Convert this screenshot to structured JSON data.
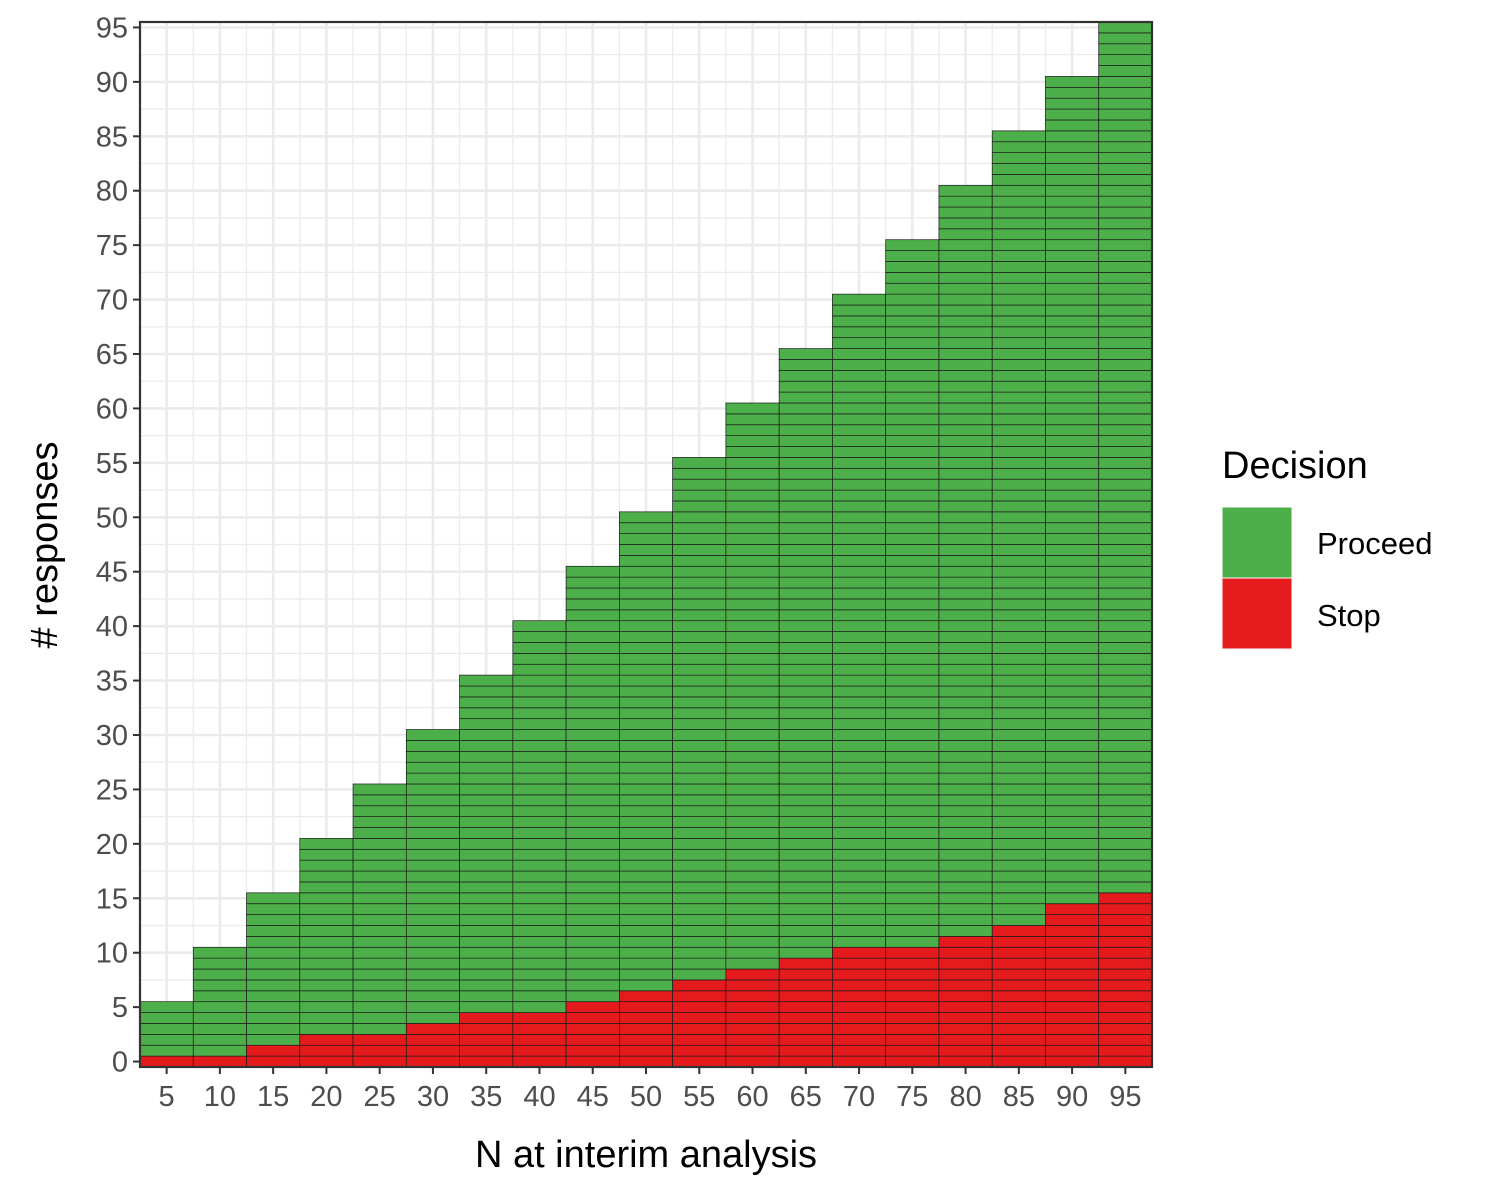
{
  "chart_data": {
    "type": "heatmap",
    "xlabel": "N at interim analysis",
    "ylabel": "# responses",
    "x_ticks": [
      5,
      10,
      15,
      20,
      25,
      30,
      35,
      40,
      45,
      50,
      55,
      60,
      65,
      70,
      75,
      80,
      85,
      90,
      95
    ],
    "y_ticks": [
      0,
      5,
      10,
      15,
      20,
      25,
      30,
      35,
      40,
      45,
      50,
      55,
      60,
      65,
      70,
      75,
      80,
      85,
      90,
      95
    ],
    "xlim": [
      2.5,
      97.5
    ],
    "ylim": [
      -0.5,
      95.5
    ],
    "grid": true,
    "legend": {
      "title": "Decision",
      "position": "right",
      "entries": [
        {
          "label": "Proceed",
          "color": "#4DAF4A"
        },
        {
          "label": "Stop",
          "color": "#E41A1C"
        }
      ]
    },
    "description": "For each interim N, tiles for responses 0..N; responses <= stop_max are Stop, above are Proceed",
    "series": [
      {
        "n": 5,
        "max_responses": 5,
        "stop_max": 0
      },
      {
        "n": 10,
        "max_responses": 10,
        "stop_max": 0
      },
      {
        "n": 15,
        "max_responses": 15,
        "stop_max": 1
      },
      {
        "n": 20,
        "max_responses": 20,
        "stop_max": 2
      },
      {
        "n": 25,
        "max_responses": 25,
        "stop_max": 2
      },
      {
        "n": 30,
        "max_responses": 30,
        "stop_max": 3
      },
      {
        "n": 35,
        "max_responses": 35,
        "stop_max": 4
      },
      {
        "n": 40,
        "max_responses": 40,
        "stop_max": 4
      },
      {
        "n": 45,
        "max_responses": 45,
        "stop_max": 5
      },
      {
        "n": 50,
        "max_responses": 50,
        "stop_max": 6
      },
      {
        "n": 55,
        "max_responses": 55,
        "stop_max": 7
      },
      {
        "n": 60,
        "max_responses": 60,
        "stop_max": 8
      },
      {
        "n": 65,
        "max_responses": 65,
        "stop_max": 9
      },
      {
        "n": 70,
        "max_responses": 70,
        "stop_max": 10
      },
      {
        "n": 75,
        "max_responses": 75,
        "stop_max": 10
      },
      {
        "n": 80,
        "max_responses": 80,
        "stop_max": 11
      },
      {
        "n": 85,
        "max_responses": 85,
        "stop_max": 12
      },
      {
        "n": 90,
        "max_responses": 90,
        "stop_max": 14
      },
      {
        "n": 95,
        "max_responses": 95,
        "stop_max": 15
      }
    ]
  }
}
